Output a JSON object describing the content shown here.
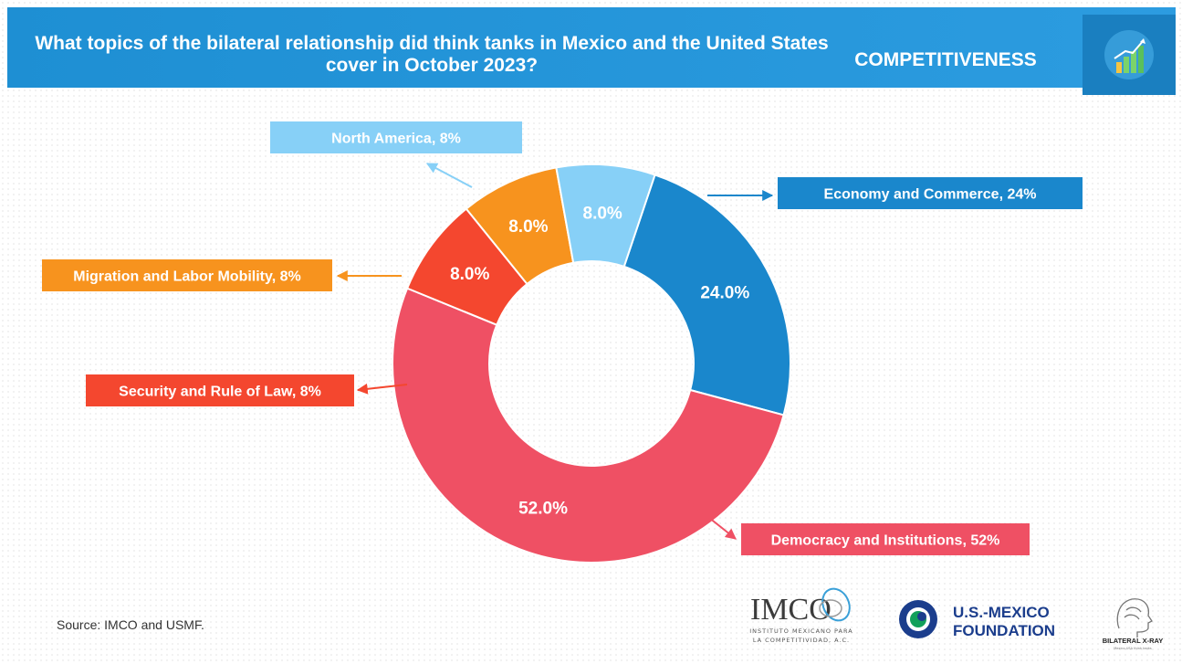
{
  "header": {
    "title": "What topics of the bilateral relationship did think tanks in Mexico and the United States cover in October 2023?",
    "category": "COMPETITIVENESS",
    "background_color": "#2196d8",
    "icon": "bar-chart-growth-icon"
  },
  "chart_data": {
    "type": "pie",
    "donut": true,
    "title": "What topics of the bilateral relationship did think tanks in Mexico and the United States cover in October 2023?",
    "slices": [
      {
        "label": "Economy and Commerce, 24%",
        "value": 24.0,
        "value_label": "24.0%",
        "color": "#1a87cc"
      },
      {
        "label": "Democracy and Institutions, 52%",
        "value": 52.0,
        "value_label": "52.0%",
        "color": "#ef5064"
      },
      {
        "label": "Security and Rule of Law, 8%",
        "value": 8.0,
        "value_label": "8.0%",
        "color": "#f4472f"
      },
      {
        "label": "Migration and Labor Mobility, 8%",
        "value": 8.0,
        "value_label": "8.0%",
        "color": "#f7931e"
      },
      {
        "label": "North America, 8%",
        "value": 8.0,
        "value_label": "8.0%",
        "color": "#87d0f7"
      }
    ]
  },
  "source": "Source: IMCO and USMF.",
  "logos": {
    "imco": {
      "name": "IMCO",
      "subtitle_line1": "INSTITUTO MEXICANO PARA",
      "subtitle_line2": "LA COMPETITIVIDAD, A.C."
    },
    "usmf": {
      "line1": "U.S.-MEXICO",
      "line2": "FOUNDATION",
      "color": "#1b3d8c",
      "accent": "#12a05a"
    },
    "xray": {
      "name": "BILATERAL X-RAY",
      "tagline": "Mexico-USA think tanks"
    }
  }
}
